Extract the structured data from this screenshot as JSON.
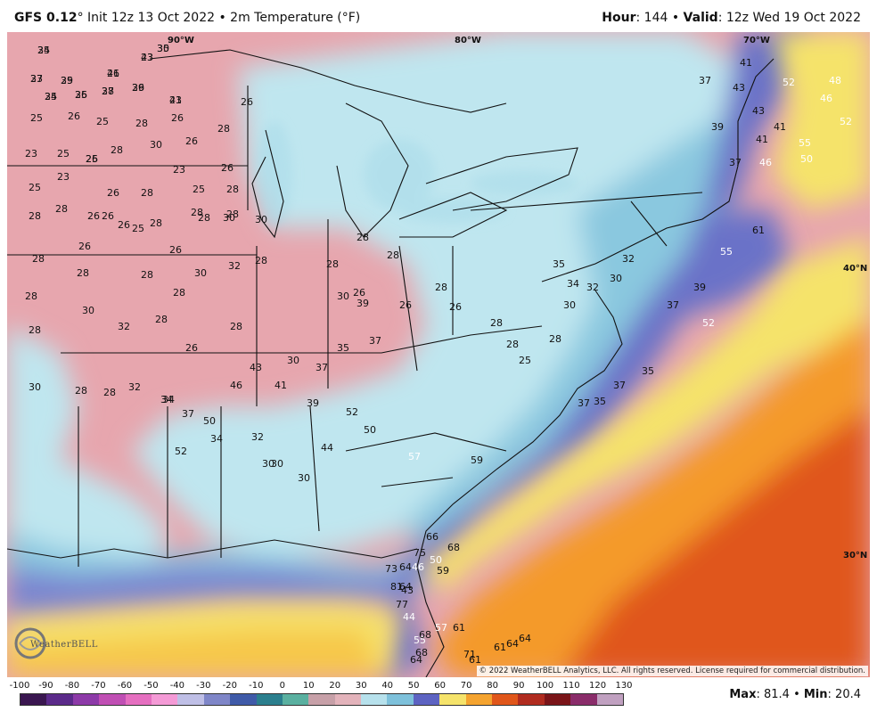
{
  "header": {
    "model": "GFS 0.12",
    "init_text": "° Init 12z 13 Oct 2022 • 2m Temperature (°F)",
    "hour_label": "Hour",
    "hour_value": ": 144 • ",
    "valid_label": "Valid",
    "valid_value": ": 12z Wed 19 Oct 2022"
  },
  "lat_labels": {
    "lon90": "90°W",
    "lon80": "80°W",
    "lon70": "70°W",
    "lat40": "40°N",
    "lat30": "30°N"
  },
  "colors": {
    "cold_pink": "#e5a3ab",
    "light_blue": "#bde6ee",
    "mid_blue": "#8ccbe0",
    "deep_blue": "#5c64c4",
    "yellow": "#f7e36a",
    "orange": "#f49a2c",
    "red_orange": "#e45a1a"
  },
  "map_values": [
    "25",
    "30",
    "23",
    "25",
    "26",
    "23",
    "25",
    "26",
    "28",
    "26",
    "23",
    "25",
    "26",
    "25",
    "28",
    "26",
    "23",
    "25",
    "26",
    "28",
    "30",
    "26",
    "28",
    "26",
    "25",
    "23",
    "25",
    "26",
    "28",
    "23",
    "25",
    "26",
    "28",
    "28",
    "26",
    "26",
    "28",
    "28",
    "28",
    "28",
    "26",
    "26",
    "25",
    "26",
    "28",
    "30",
    "30",
    "28",
    "28",
    "28",
    "28",
    "28",
    "30",
    "32",
    "28",
    "28",
    "30",
    "32",
    "28",
    "26",
    "28",
    "30",
    "30",
    "28",
    "28",
    "32",
    "34",
    "37",
    "34",
    "34",
    "30",
    "32",
    "30",
    "30",
    "30",
    "28",
    "28",
    "28",
    "26",
    "26",
    "28",
    "26",
    "28",
    "28",
    "25",
    "28",
    "30",
    "32",
    "30",
    "32",
    "34",
    "35",
    "37",
    "35",
    "37",
    "35",
    "37",
    "39",
    "37",
    "39",
    "37",
    "41",
    "43",
    "46",
    "41",
    "41",
    "43",
    "50",
    "52",
    "46",
    "48",
    "52",
    "55",
    "57",
    "55",
    "61",
    "59",
    "64",
    "64",
    "66",
    "68",
    "68",
    "68",
    "64",
    "61",
    "61",
    "64",
    "64",
    "71",
    "73",
    "75",
    "77",
    "81",
    "43",
    "44",
    "46",
    "50",
    "52",
    "55",
    "61",
    "59",
    "57",
    "50",
    "52",
    "44",
    "37",
    "39",
    "35",
    "37",
    "39",
    "41",
    "43",
    "46",
    "50",
    "52",
    "34",
    "35",
    "37",
    "39",
    "41",
    "43",
    "34",
    "35",
    "37",
    "39",
    "41"
  ],
  "scale": {
    "labels": [
      "-100",
      "-90",
      "-80",
      "-70",
      "-60",
      "-50",
      "-40",
      "-30",
      "-20",
      "-10",
      "0",
      "10",
      "20",
      "30",
      "40",
      "50",
      "60",
      "70",
      "80",
      "90",
      "100",
      "110",
      "120",
      "130"
    ]
  },
  "copyright": "© 2022 WeatherBELL Analytics, LLC. All rights reserved. License required for commercial distribution.",
  "logo": "WeatherBELL",
  "maxmin": {
    "max_label": "Max",
    "max_value": ": 81.4 • ",
    "min_label": "Min",
    "min_value": ": 20.4"
  }
}
